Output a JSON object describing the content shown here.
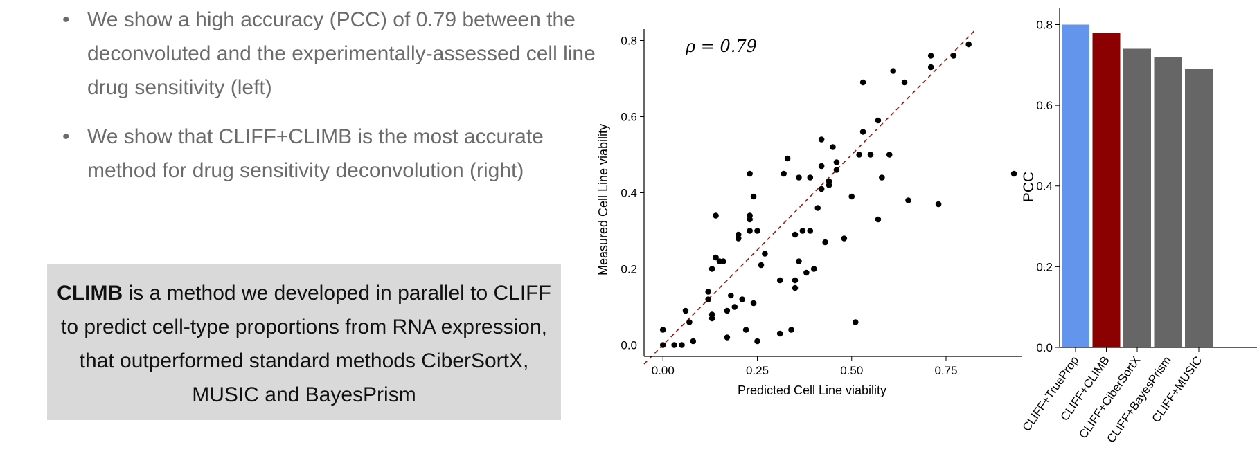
{
  "bullets": [
    "We show a high accuracy (PCC) of 0.79 between the deconvoluted and the experimentally-assessed cell line drug sensitivity (left)",
    "We show that CLIFF+CLIMB is the most accurate method for drug sensitivity deconvolution (right)"
  ],
  "bullet_marker": "•",
  "callout": {
    "bold": "CLIMB",
    "text": " is a method we developed in parallel to CLIFF to predict cell-type proportions from RNA expression, that outperformed standard methods CiberSortX, MUSIC and BayesPrism",
    "background": "#d9d9d9"
  },
  "chart_data": [
    {
      "type": "scatter",
      "xlabel": "Predicted Cell Line viability",
      "ylabel": "Measured Cell Line viability",
      "annotation": "ρ = 0.79",
      "xlim": [
        -0.05,
        0.95
      ],
      "ylim": [
        -0.03,
        0.83
      ],
      "xticks": [
        0.0,
        0.25,
        0.5,
        0.75
      ],
      "xtick_labels": [
        "0.00",
        "0.25",
        "0.50",
        "0.75"
      ],
      "yticks": [
        0.0,
        0.2,
        0.4,
        0.6,
        0.8
      ],
      "ytick_labels": [
        "0.0",
        "0.2",
        "0.4",
        "0.6",
        "0.8"
      ],
      "reference_line": {
        "slope": 1,
        "intercept": 0,
        "style": "dashed",
        "color": "#8b1a1a"
      },
      "point_color": "#000000",
      "grid": false,
      "points": [
        [
          0.0,
          0.04
        ],
        [
          0.0,
          0.0
        ],
        [
          0.03,
          0.0
        ],
        [
          0.05,
          0.0
        ],
        [
          0.06,
          0.09
        ],
        [
          0.07,
          0.06
        ],
        [
          0.08,
          0.01
        ],
        [
          0.12,
          0.12
        ],
        [
          0.12,
          0.14
        ],
        [
          0.13,
          0.08
        ],
        [
          0.13,
          0.07
        ],
        [
          0.13,
          0.2
        ],
        [
          0.14,
          0.23
        ],
        [
          0.14,
          0.34
        ],
        [
          0.15,
          0.22
        ],
        [
          0.16,
          0.22
        ],
        [
          0.17,
          0.09
        ],
        [
          0.17,
          0.02
        ],
        [
          0.18,
          0.13
        ],
        [
          0.19,
          0.1
        ],
        [
          0.2,
          0.28
        ],
        [
          0.2,
          0.29
        ],
        [
          0.21,
          0.12
        ],
        [
          0.22,
          0.04
        ],
        [
          0.23,
          0.3
        ],
        [
          0.23,
          0.34
        ],
        [
          0.23,
          0.33
        ],
        [
          0.23,
          0.45
        ],
        [
          0.24,
          0.39
        ],
        [
          0.24,
          0.11
        ],
        [
          0.25,
          0.01
        ],
        [
          0.25,
          0.3
        ],
        [
          0.26,
          0.21
        ],
        [
          0.27,
          0.24
        ],
        [
          0.31,
          0.03
        ],
        [
          0.31,
          0.17
        ],
        [
          0.32,
          0.45
        ],
        [
          0.33,
          0.49
        ],
        [
          0.34,
          0.04
        ],
        [
          0.35,
          0.29
        ],
        [
          0.35,
          0.15
        ],
        [
          0.35,
          0.17
        ],
        [
          0.36,
          0.22
        ],
        [
          0.36,
          0.44
        ],
        [
          0.37,
          0.3
        ],
        [
          0.38,
          0.19
        ],
        [
          0.39,
          0.44
        ],
        [
          0.39,
          0.3
        ],
        [
          0.4,
          0.2
        ],
        [
          0.41,
          0.36
        ],
        [
          0.42,
          0.41
        ],
        [
          0.42,
          0.47
        ],
        [
          0.42,
          0.54
        ],
        [
          0.43,
          0.27
        ],
        [
          0.44,
          0.42
        ],
        [
          0.44,
          0.43
        ],
        [
          0.45,
          0.52
        ],
        [
          0.46,
          0.48
        ],
        [
          0.46,
          0.46
        ],
        [
          0.48,
          0.28
        ],
        [
          0.5,
          0.39
        ],
        [
          0.51,
          0.06
        ],
        [
          0.52,
          0.5
        ],
        [
          0.53,
          0.56
        ],
        [
          0.53,
          0.69
        ],
        [
          0.55,
          0.5
        ],
        [
          0.57,
          0.33
        ],
        [
          0.57,
          0.59
        ],
        [
          0.58,
          0.44
        ],
        [
          0.6,
          0.5
        ],
        [
          0.61,
          0.72
        ],
        [
          0.64,
          0.69
        ],
        [
          0.65,
          0.38
        ],
        [
          0.71,
          0.73
        ],
        [
          0.71,
          0.76
        ],
        [
          0.73,
          0.37
        ],
        [
          0.77,
          0.76
        ],
        [
          0.81,
          0.79
        ],
        [
          0.93,
          0.45
        ]
      ]
    },
    {
      "type": "bar",
      "ylabel": "PCC",
      "ylim": [
        0.0,
        0.83
      ],
      "yticks": [
        0.0,
        0.2,
        0.4,
        0.6,
        0.8
      ],
      "ytick_labels": [
        "0.0",
        "0.2",
        "0.4",
        "0.6",
        "0.8"
      ],
      "categories": [
        "CLIFF+TrueProp",
        "CLIFF+CLIMB",
        "CLIFF+CiberSortX",
        "CLIFF+BayesPrism",
        "CLIFF+MUSIC"
      ],
      "values": [
        0.8,
        0.78,
        0.74,
        0.72,
        0.69
      ],
      "colors": [
        "#6495ed",
        "#8b0000",
        "#666666",
        "#666666",
        "#666666"
      ],
      "grid": false
    }
  ]
}
